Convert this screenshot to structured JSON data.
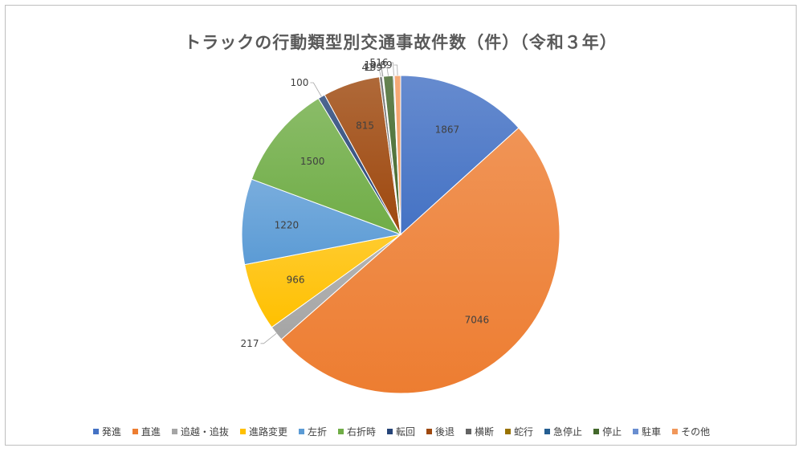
{
  "chart_data": {
    "type": "pie",
    "title": "トラックの行動類型別交通事故件数（件）（令和３年）",
    "categories": [
      "発進",
      "直進",
      "追越・追抜",
      "進路変更",
      "左折",
      "右折時",
      "転回",
      "後退",
      "横断",
      "蛇行",
      "急停止",
      "停止",
      "駐車",
      "その他"
    ],
    "values": [
      1867,
      7046,
      217,
      966,
      1220,
      1500,
      100,
      815,
      41,
      5,
      10,
      139,
      16,
      89
    ],
    "colors": [
      "#4472c4",
      "#ed7d31",
      "#a5a5a5",
      "#ffc000",
      "#5b9bd5",
      "#70ad47",
      "#264478",
      "#9e480e",
      "#636363",
      "#997300",
      "#255e91",
      "#43682b",
      "#698ed0",
      "#f1975a"
    ],
    "legend_position": "bottom"
  }
}
